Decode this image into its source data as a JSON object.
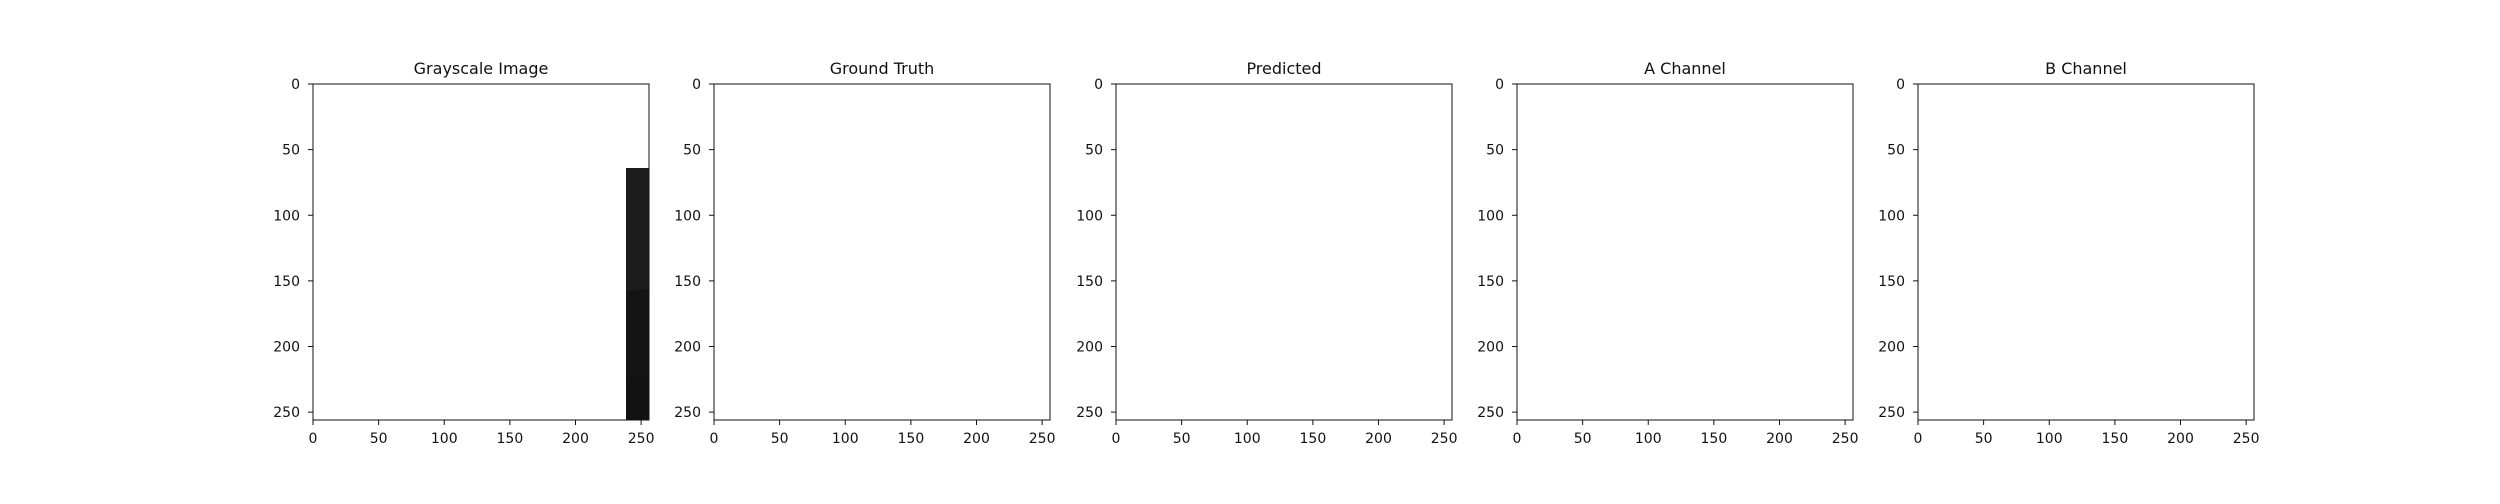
{
  "figure": {
    "background": "#ffffff",
    "panels": [
      {
        "id": "grayscale",
        "title": "Grayscale Image",
        "style": "gray",
        "x_ticks": [
          "0",
          "50",
          "100",
          "150",
          "200",
          "250"
        ],
        "y_ticks": [
          "0",
          "50",
          "100",
          "150",
          "200",
          "250"
        ]
      },
      {
        "id": "ground-truth",
        "title": "Ground Truth",
        "style": "true-color",
        "x_ticks": [
          "0",
          "50",
          "100",
          "150",
          "200",
          "250"
        ],
        "y_ticks": [
          "0",
          "50",
          "100",
          "150",
          "200",
          "250"
        ]
      },
      {
        "id": "predicted",
        "title": "Predicted",
        "style": "predicted-color",
        "x_ticks": [
          "0",
          "50",
          "100",
          "150",
          "200",
          "250"
        ],
        "y_ticks": [
          "0",
          "50",
          "100",
          "150",
          "200",
          "250"
        ]
      },
      {
        "id": "a-channel",
        "title": "A Channel",
        "style": "a-channel",
        "x_ticks": [
          "0",
          "50",
          "100",
          "150",
          "200",
          "250"
        ],
        "y_ticks": [
          "0",
          "50",
          "100",
          "150",
          "200",
          "250"
        ]
      },
      {
        "id": "b-channel",
        "title": "B Channel",
        "style": "b-channel",
        "x_ticks": [
          "0",
          "50",
          "100",
          "150",
          "200",
          "250"
        ],
        "y_ticks": [
          "0",
          "50",
          "100",
          "150",
          "200",
          "250"
        ]
      }
    ]
  }
}
